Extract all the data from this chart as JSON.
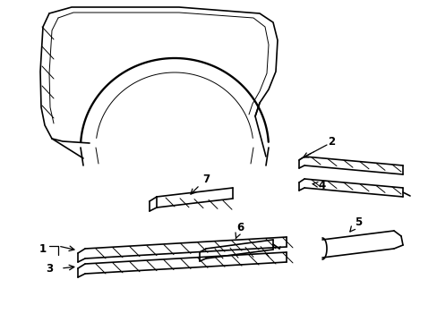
{
  "bg_color": "#ffffff",
  "lc": "#000000",
  "lw": 1.2,
  "tlw": 0.7,
  "figsize": [
    4.89,
    3.6
  ],
  "dpi": 100
}
